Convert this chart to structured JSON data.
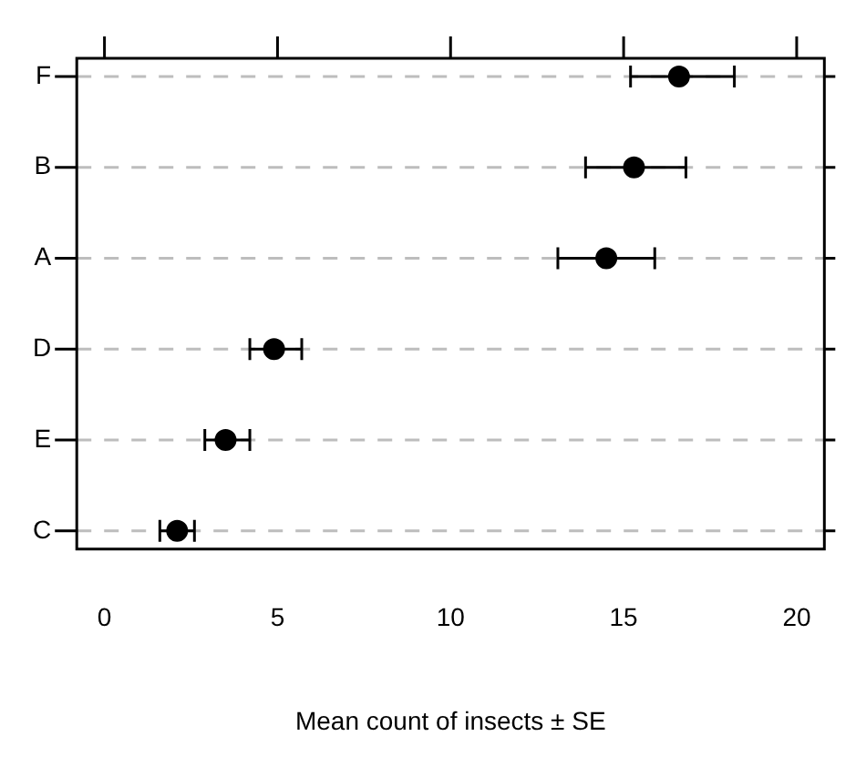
{
  "chart_data": {
    "type": "scatter",
    "orientation": "horizontal",
    "xlabel": "Mean count of insects ± SE",
    "categories": [
      "F",
      "B",
      "A",
      "D",
      "E",
      "C"
    ],
    "values": [
      16.6,
      15.3,
      14.5,
      4.9,
      3.5,
      2.1
    ],
    "errors": [
      [
        15.2,
        18.2
      ],
      [
        13.9,
        16.8
      ],
      [
        13.1,
        15.9
      ],
      [
        4.2,
        5.7
      ],
      [
        2.9,
        4.2
      ],
      [
        1.6,
        2.6
      ]
    ],
    "color": "#000000",
    "marker": "circle",
    "grid": "y",
    "xlim": [
      -0.8,
      20.8
    ],
    "xticks": [
      0,
      5,
      10,
      15,
      20
    ],
    "legend": false
  }
}
